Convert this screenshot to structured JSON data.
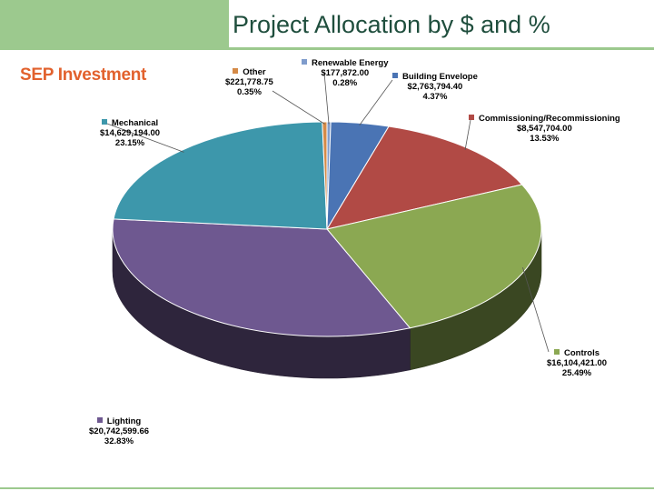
{
  "slide": {
    "title": "Project Allocation by $ and %"
  },
  "chart_data": {
    "type": "pie",
    "title": "SEP Investment",
    "slices": [
      {
        "name": "Renewable Energy",
        "label_value": "$177,872.00",
        "label_percent": "0.28%",
        "value": 177872.0,
        "percent": 0.28,
        "color": "#7f9ccc"
      },
      {
        "name": "Building Envelope",
        "label_value": "$2,763,794.40",
        "label_percent": "4.37%",
        "value": 2763794.4,
        "percent": 4.37,
        "color": "#4a74b4"
      },
      {
        "name": "Commissioning/Recommissioning",
        "label_value": "$8,547,704.00",
        "label_percent": "13.53%",
        "value": 8547704.0,
        "percent": 13.53,
        "color": "#b14a45"
      },
      {
        "name": "Controls",
        "label_value": "$16,104,421.00",
        "label_percent": "25.49%",
        "value": 16104421.0,
        "percent": 25.49,
        "color": "#8ba852"
      },
      {
        "name": "Lighting",
        "label_value": "$20,742,599.66",
        "label_percent": "32.83%",
        "value": 20742599.66,
        "percent": 32.83,
        "color": "#6e5890"
      },
      {
        "name": "Mechanical",
        "label_value": "$14,629,194.00",
        "label_percent": "23.15%",
        "value": 14629194.0,
        "percent": 23.15,
        "color": "#3d97ab"
      },
      {
        "name": "Other",
        "label_value": "$221,778.75",
        "label_percent": "0.35%",
        "value": 221778.75,
        "percent": 0.35,
        "color": "#d58a47"
      }
    ]
  }
}
